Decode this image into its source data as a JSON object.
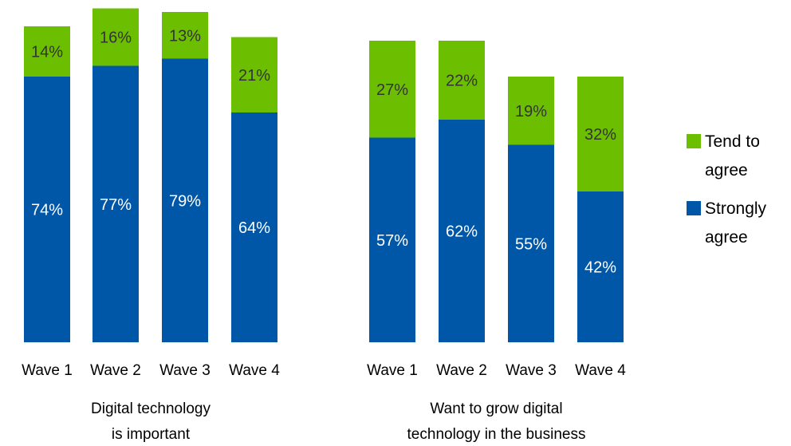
{
  "chart_data": {
    "type": "bar",
    "stacked": true,
    "colors": {
      "Strongly agree": "#0057a8",
      "Tend to agree": "#6cbf00"
    },
    "legend": {
      "placement": "right",
      "entries": [
        {
          "name": "Tend to agree",
          "lines": [
            "Tend to",
            "agree"
          ],
          "color": "#6cbf00"
        },
        {
          "name": "Strongly agree",
          "lines": [
            "Strongly",
            "agree"
          ],
          "color": "#0057a8"
        }
      ]
    },
    "panels": [
      {
        "caption": [
          "Digital technology",
          "is important"
        ],
        "categories": [
          "Wave 1",
          "Wave 2",
          "Wave 3",
          "Wave 4"
        ],
        "series": [
          {
            "name": "Strongly agree",
            "values": [
              74,
              77,
              79,
              64
            ],
            "labels": [
              "74%",
              "77%",
              "79%",
              "64%"
            ]
          },
          {
            "name": "Tend to agree",
            "values": [
              14,
              16,
              13,
              21
            ],
            "labels": [
              "14%",
              "16%",
              "13%",
              "21%"
            ]
          }
        ]
      },
      {
        "caption": [
          "Want to grow digital",
          "technology in the business"
        ],
        "categories": [
          "Wave 1",
          "Wave 2",
          "Wave 3",
          "Wave 4"
        ],
        "series": [
          {
            "name": "Strongly agree",
            "values": [
              57,
              62,
              55,
              42
            ],
            "labels": [
              "57%",
              "62%",
              "55%",
              "42%"
            ]
          },
          {
            "name": "Tend to agree",
            "values": [
              27,
              22,
              19,
              32
            ],
            "labels": [
              "27%",
              "22%",
              "19%",
              "32%"
            ]
          }
        ]
      }
    ]
  }
}
